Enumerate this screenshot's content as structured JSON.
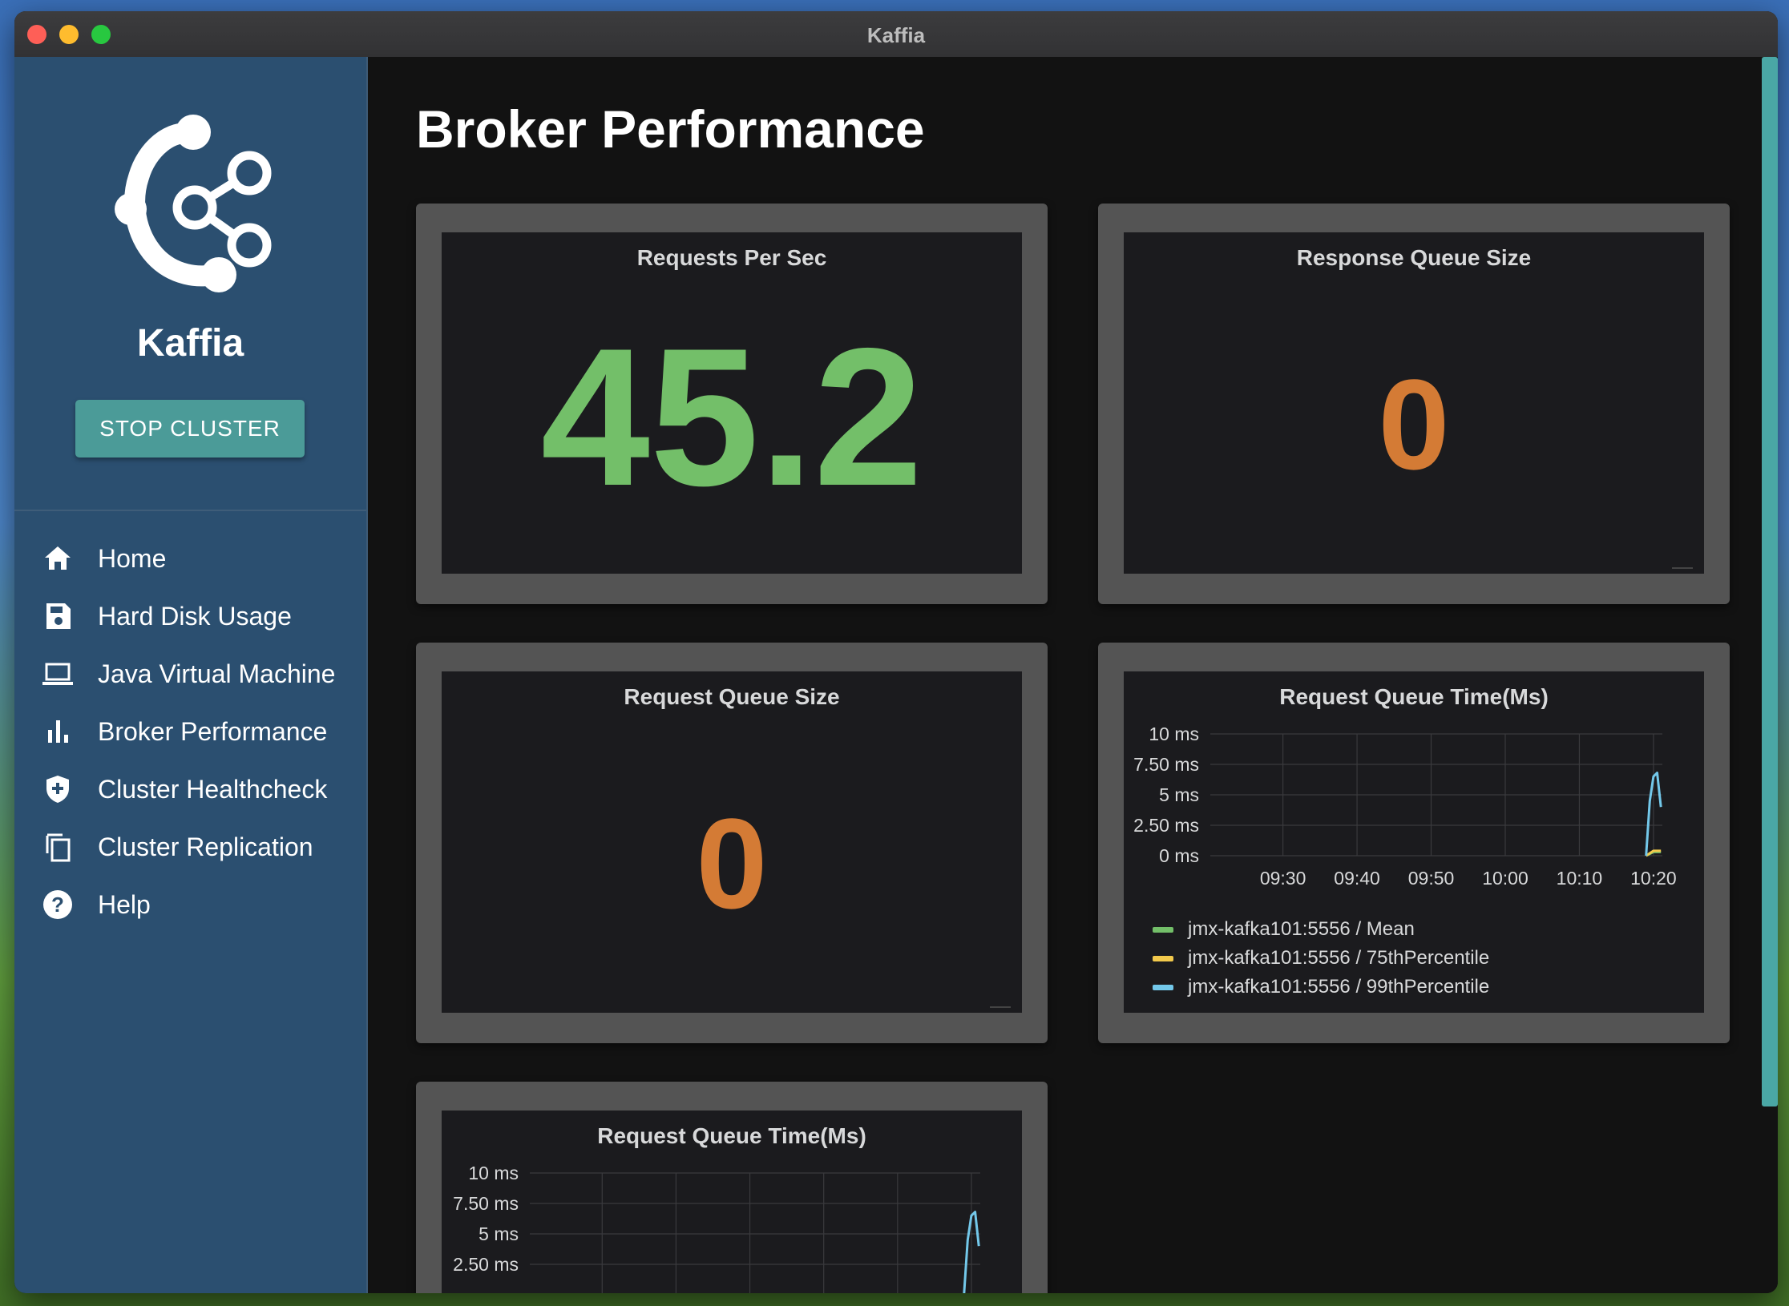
{
  "window": {
    "title": "Kaffia"
  },
  "sidebar": {
    "brand": "Kaffia",
    "stop_button": "STOP CLUSTER",
    "items": [
      {
        "label": "Home",
        "icon": "home-icon"
      },
      {
        "label": "Hard Disk Usage",
        "icon": "save-icon"
      },
      {
        "label": "Java Virtual Machine",
        "icon": "laptop-icon"
      },
      {
        "label": "Broker Performance",
        "icon": "bar-chart-icon"
      },
      {
        "label": "Cluster Healthcheck",
        "icon": "shield-plus-icon"
      },
      {
        "label": "Cluster Replication",
        "icon": "copy-icon"
      },
      {
        "label": "Help",
        "icon": "help-icon"
      }
    ]
  },
  "main": {
    "title": "Broker Performance",
    "panels": {
      "requests_per_sec": {
        "title": "Requests Per Sec",
        "value": "45.2",
        "color": "#73bf69"
      },
      "response_queue_size": {
        "title": "Response Queue Size",
        "value": "0",
        "color": "#d47b35"
      },
      "request_queue_size": {
        "title": "Request Queue Size",
        "value": "0",
        "color": "#d47b35"
      },
      "request_queue_time": {
        "title": "Request Queue Time(Ms)"
      },
      "request_queue_time_2": {
        "title": "Request Queue Time(Ms)"
      }
    }
  },
  "chart_data": [
    {
      "type": "line",
      "title": "Request Queue Time(Ms)",
      "yticks": [
        "10 ms",
        "7.50 ms",
        "5 ms",
        "2.50 ms",
        "0 ms"
      ],
      "ylim": [
        0,
        10
      ],
      "xticks": [
        "09:30",
        "09:40",
        "09:50",
        "10:00",
        "10:10",
        "10:20"
      ],
      "grid": true,
      "legend_position": "bottom",
      "series": [
        {
          "name": "jmx-kafka101:5556 / Mean",
          "color": "#73bf69",
          "x": [
            "10:19",
            "10:20",
            "10:21"
          ],
          "y": [
            0,
            0.3,
            0.3
          ]
        },
        {
          "name": "jmx-kafka101:5556 / 75thPercentile",
          "color": "#f2c94c",
          "x": [
            "10:19",
            "10:20",
            "10:21"
          ],
          "y": [
            0,
            0.4,
            0.4
          ]
        },
        {
          "name": "jmx-kafka101:5556 / 99thPercentile",
          "color": "#73c8ea",
          "x": [
            "10:19",
            "10:19.5",
            "10:20",
            "10:20.5",
            "10:21"
          ],
          "y": [
            0,
            4.5,
            6.5,
            6.8,
            4.0
          ]
        }
      ]
    },
    {
      "type": "line",
      "title": "Request Queue Time(Ms)",
      "yticks": [
        "10 ms",
        "7.50 ms",
        "5 ms",
        "2.50 ms"
      ],
      "ylim": [
        0,
        10
      ],
      "grid": true,
      "series": [
        {
          "color": "#73c8ea",
          "x": [
            "10:19",
            "10:19.5",
            "10:20",
            "10:20.5",
            "10:21"
          ],
          "y": [
            0,
            4.5,
            6.5,
            6.8,
            4.0
          ]
        }
      ]
    }
  ]
}
